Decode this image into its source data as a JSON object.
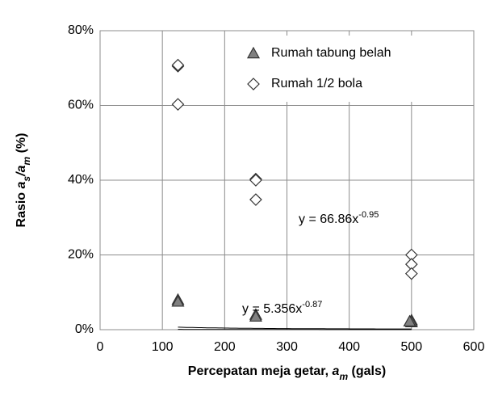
{
  "chart_data": {
    "type": "scatter",
    "xlim": [
      0,
      600
    ],
    "xticks": [
      0,
      100,
      200,
      300,
      400,
      500,
      600
    ],
    "ylim": [
      0,
      80
    ],
    "yticks": [
      {
        "value": 0,
        "label": "0%"
      },
      {
        "value": 20,
        "label": "20%"
      },
      {
        "value": 40,
        "label": "40%"
      },
      {
        "value": 60,
        "label": "60%"
      },
      {
        "value": 80,
        "label": "80%"
      }
    ],
    "grid": true,
    "legend": "top-right",
    "xlabel": [
      {
        "text": "Percepatan meja getar, "
      },
      {
        "text": "a",
        "italic": true
      },
      {
        "text": "m",
        "italic": true,
        "sub": true
      },
      {
        "text": " (gals)"
      }
    ],
    "ylabel": [
      {
        "text": "Rasio  "
      },
      {
        "text": "a",
        "italic": true
      },
      {
        "text": "s",
        "italic": true,
        "sub": true
      },
      {
        "text": "/",
        "italic": true
      },
      {
        "text": "a",
        "italic": true
      },
      {
        "text": "m",
        "italic": true,
        "sub": true
      },
      {
        "text": "  (%)"
      }
    ],
    "series": [
      {
        "name": "Rumah tabung belah",
        "marker": "triangle",
        "color": "#808080",
        "x": [
          125,
          125,
          250,
          250,
          500,
          500,
          497
        ],
        "values": [
          8,
          7.5,
          4,
          3.5,
          2.5,
          2,
          2.2
        ],
        "trendline": {
          "coefficient": 5.356,
          "exponent": -0.87,
          "label": "y = 5.356x",
          "label_exponent": "-0.87"
        }
      },
      {
        "name": "Rumah 1/2 bola",
        "marker": "diamond",
        "color": "#ffffff",
        "x": [
          125,
          125,
          125,
          250,
          250,
          250,
          500,
          500,
          500
        ],
        "values": [
          70.5,
          70.8,
          60.3,
          40.3,
          40,
          34.8,
          20,
          17.5,
          15
        ],
        "trendline": {
          "coefficient": 66.86,
          "exponent": -0.95,
          "label": "y = 66.86x",
          "label_exponent": "-0.95"
        }
      }
    ]
  }
}
